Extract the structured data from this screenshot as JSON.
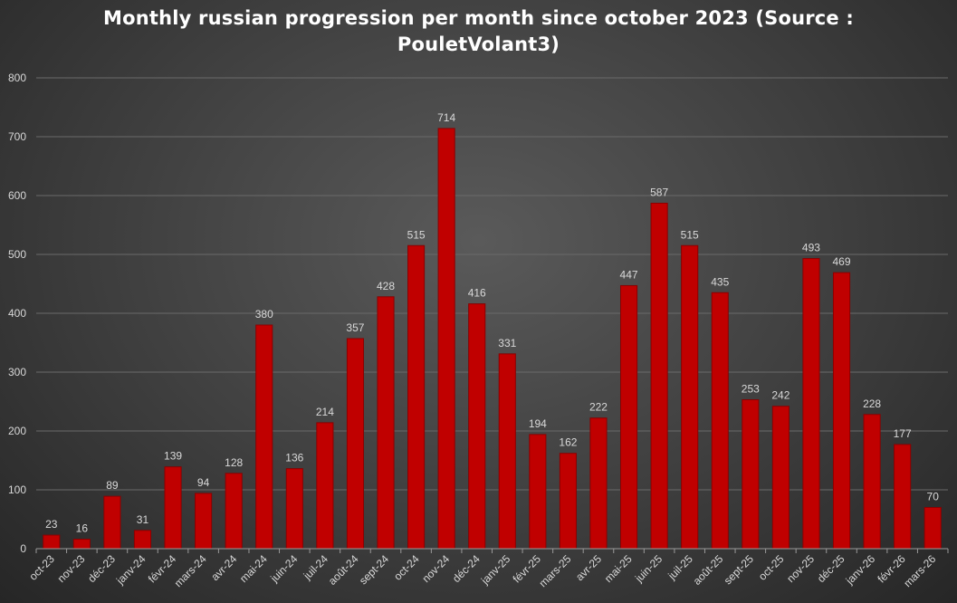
{
  "chart_data": {
    "type": "bar",
    "title_lines": [
      "Monthly russian progression per month since october 2023 (Source :",
      "PouletVolant3)"
    ],
    "xlabel": "",
    "ylabel": "",
    "ylim": [
      0,
      800
    ],
    "yticks": [
      "0",
      "100",
      "200",
      "300",
      "400",
      "500",
      "600",
      "700",
      "800"
    ],
    "grid": true,
    "categories": [
      "oct-23",
      "nov-23",
      "déc-23",
      "janv-24",
      "févr-24",
      "mars-24",
      "avr-24",
      "mai-24",
      "juin-24",
      "juil-24",
      "août-24",
      "sept-24",
      "oct-24",
      "nov-24",
      "déc-24",
      "janv-25",
      "févr-25",
      "mars-25",
      "avr-25",
      "mai-25",
      "juin-25",
      "juil-25",
      "août-25",
      "sept-25",
      "oct-25",
      "nov-25",
      "déc-25",
      "janv-26",
      "févr-26",
      "mars-26"
    ],
    "values": [
      23,
      16,
      89,
      31,
      139,
      94,
      128,
      380,
      136,
      214,
      357,
      428,
      515,
      714,
      416,
      331,
      194,
      162,
      222,
      447,
      587,
      515,
      435,
      253,
      242,
      493,
      469,
      228,
      177,
      70
    ],
    "bar_color": "#c00000",
    "bar_edge_color": "#8b0000"
  }
}
